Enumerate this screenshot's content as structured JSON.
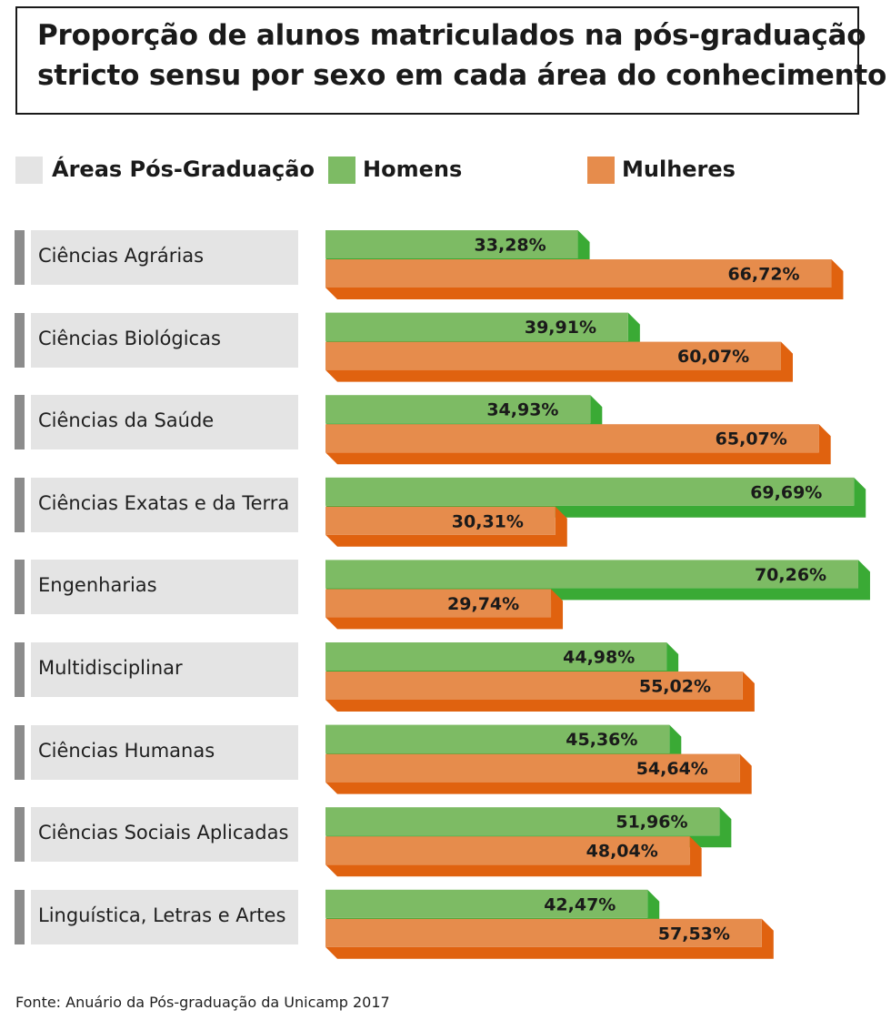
{
  "chart_data": {
    "type": "bar",
    "orientation": "horizontal",
    "title": "Proporção de alunos matriculados na pós-graduação stricto sensu por sexo em cada área do conhecimento",
    "title_lines": [
      "Proporção de alunos matriculados na pós-graduação",
      "stricto sensu por sexo em cada área do conhecimento"
    ],
    "legend": {
      "categories_label": "Áreas Pós-Graduação",
      "items": [
        "Homens",
        "Mulheres"
      ],
      "placement": "top"
    },
    "categories": [
      "Ciências Agrárias",
      "Ciências Biológicas",
      "Ciências da Saúde",
      "Ciências Exatas e da Terra",
      "Engenharias",
      "Multidisciplinar",
      "Ciências Humanas",
      "Ciências Sociais Aplicadas",
      "Linguística, Letras e Artes"
    ],
    "series": [
      {
        "name": "Homens",
        "values": [
          33.28,
          39.91,
          34.93,
          69.69,
          70.26,
          44.98,
          45.36,
          51.96,
          42.47
        ],
        "labels": [
          "33,28%",
          "39,91%",
          "34,93%",
          "69,69%",
          "70,26%",
          "44,98%",
          "45,36%",
          "51,96%",
          "42,47%"
        ]
      },
      {
        "name": "Mulheres",
        "values": [
          66.72,
          60.07,
          65.07,
          30.31,
          29.74,
          55.02,
          54.64,
          48.04,
          57.53
        ],
        "labels": [
          "66,72%",
          "60,07%",
          "65,07%",
          "30,31%",
          "29,74%",
          "55,02%",
          "54,64%",
          "48,04%",
          "57,53%"
        ]
      }
    ],
    "unit": "%",
    "grid": false,
    "source": "Fonte: Anuário da Pós-graduação da Unicamp 2017"
  },
  "colors": {
    "homens_face": "#7dbb64",
    "homens_side": "#3aaa35",
    "mulheres_face": "#e68c4c",
    "mulheres_side": "#e0620f",
    "category_box": "#e4e4e4",
    "category_marker": "#8c8c8c",
    "legend_categories_swatch": "#e4e4e4"
  }
}
